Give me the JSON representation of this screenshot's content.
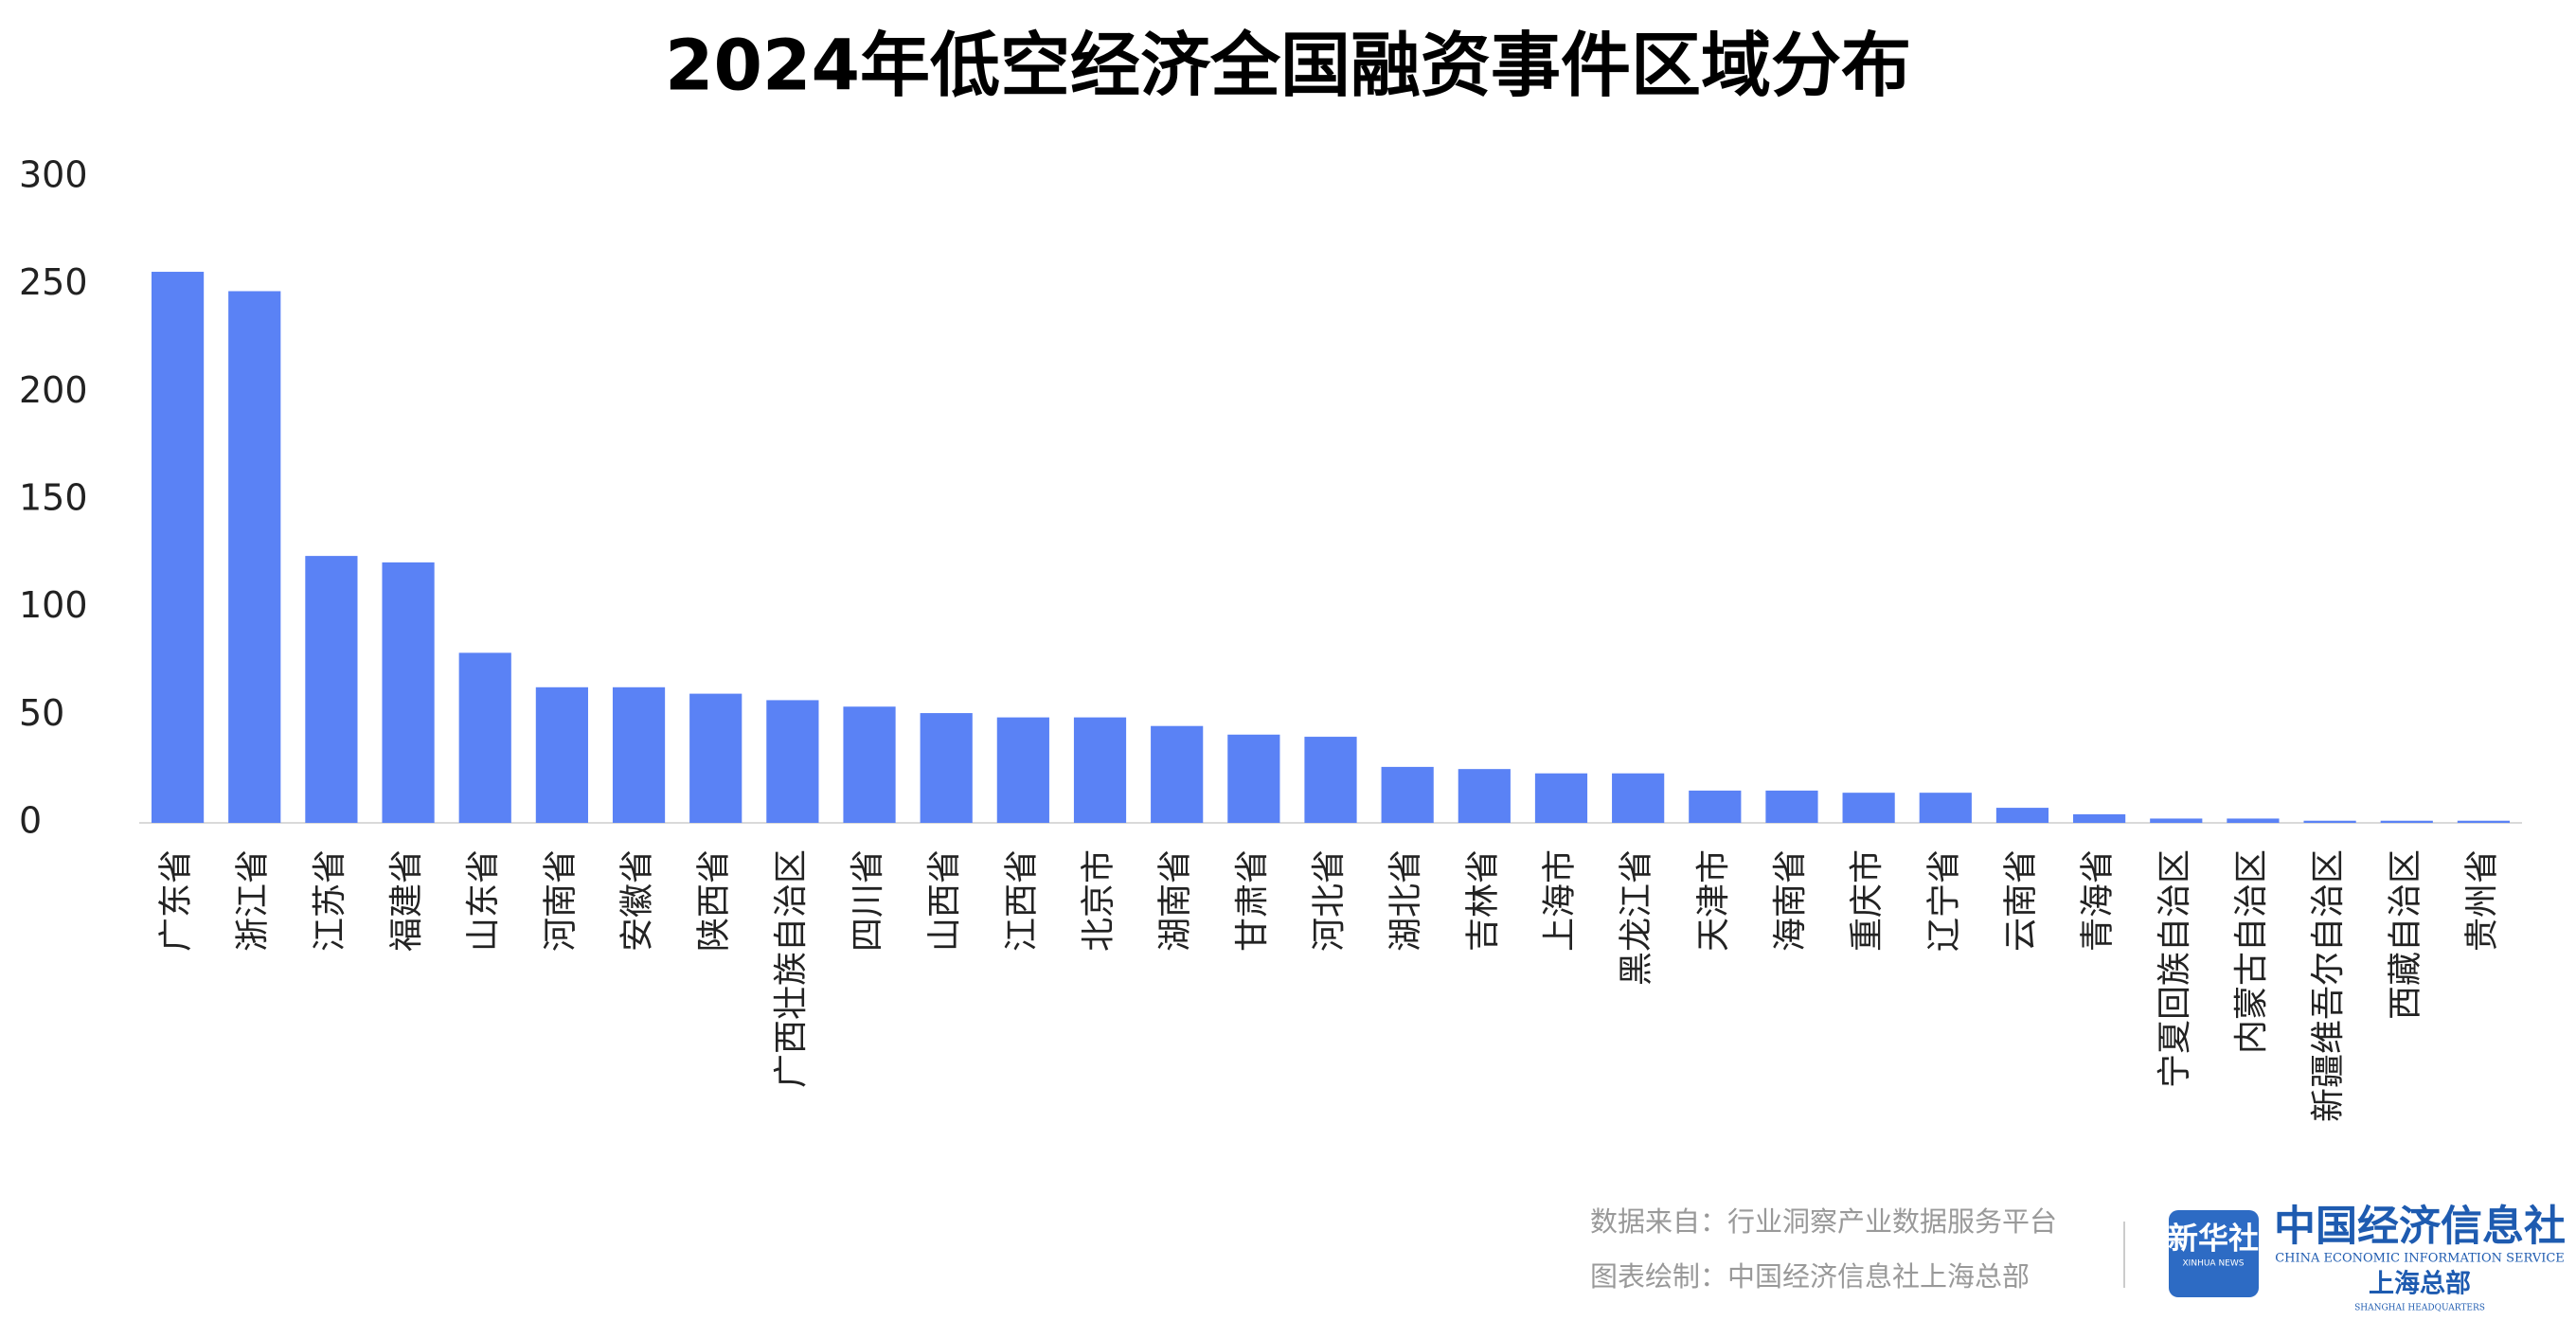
{
  "chart_data": {
    "type": "bar",
    "title": "2024年低空经济全国融资事件区域分布",
    "categories": [
      "广东省",
      "浙江省",
      "江苏省",
      "福建省",
      "山东省",
      "河南省",
      "安徽省",
      "陕西省",
      "广西壮族自治区",
      "四川省",
      "山西省",
      "江西省",
      "北京市",
      "湖南省",
      "甘肃省",
      "河北省",
      "湖北省",
      "吉林省",
      "上海市",
      "黑龙江省",
      "天津市",
      "海南省",
      "重庆市",
      "辽宁省",
      "云南省",
      "青海省",
      "宁夏回族自治区",
      "内蒙古自治区",
      "新疆维吾尔自治区",
      "西藏自治区",
      "贵州省"
    ],
    "values": [
      256,
      247,
      124,
      121,
      79,
      63,
      63,
      60,
      57,
      54,
      51,
      49,
      49,
      45,
      41,
      40,
      26,
      25,
      23,
      23,
      15,
      15,
      14,
      14,
      7,
      4,
      2,
      2,
      1,
      1,
      1
    ],
    "color": "#5a82f5",
    "ylim": [
      0,
      300
    ],
    "yticks": [
      0,
      50,
      100,
      150,
      200,
      250,
      300
    ],
    "grid": false
  },
  "footer": {
    "source": "数据来自：行业洞察产业数据服务平台",
    "credit": "图表绘制：中国经济信息社上海总部",
    "logo_cn": "新华社",
    "logo_en": "XINHUA NEWS",
    "org_cn": "中国经济信息社",
    "org_en": "CHINA ECONOMIC INFORMATION SERVICE",
    "branch_cn": "上海总部",
    "branch_en": "SHANGHAI HEADQUARTERS"
  }
}
